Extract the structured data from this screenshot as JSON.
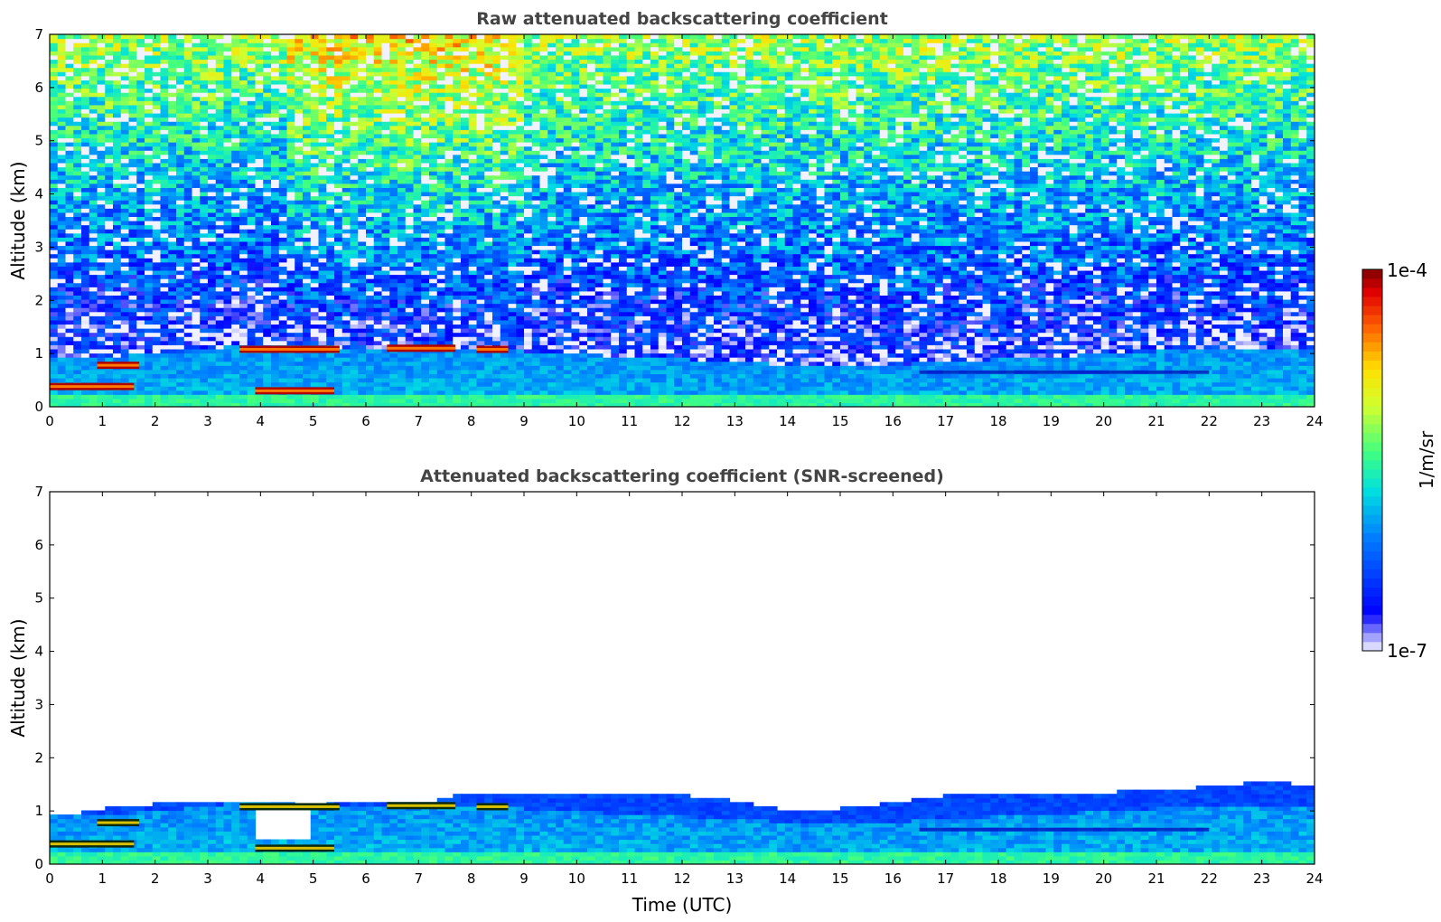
{
  "figure": {
    "colorbar": {
      "max_label": "1e-4",
      "min_label": "1e-7",
      "unit_label": "1/m/sr",
      "colormap": "jet",
      "scale": "log"
    }
  },
  "chart_data": [
    {
      "type": "heatmap",
      "title": "Raw attenuated backscattering coefficient",
      "xlabel": "",
      "ylabel": "Altitude (km)",
      "xlim": [
        0,
        24
      ],
      "ylim": [
        0,
        7
      ],
      "x_ticks": [
        "0",
        "1",
        "2",
        "3",
        "4",
        "5",
        "6",
        "7",
        "8",
        "9",
        "10",
        "11",
        "12",
        "13",
        "14",
        "15",
        "16",
        "17",
        "18",
        "19",
        "20",
        "21",
        "22",
        "23",
        "24"
      ],
      "y_ticks": [
        "0",
        "1",
        "2",
        "3",
        "4",
        "5",
        "6",
        "7"
      ],
      "features": {
        "near_surface_layer_km": [
          0.0,
          0.3
        ],
        "boundary_layer_top_km": [
          [
            0,
            0.9
          ],
          [
            2,
            1.0
          ],
          [
            4,
            1.2
          ],
          [
            6,
            1.1
          ],
          [
            8,
            1.1
          ],
          [
            10,
            1.0
          ],
          [
            12,
            0.9
          ],
          [
            14,
            0.8
          ],
          [
            16,
            0.8
          ],
          [
            18,
            0.9
          ],
          [
            20,
            1.0
          ],
          [
            22,
            1.1
          ],
          [
            24,
            1.1
          ]
        ],
        "cloud_segments": [
          {
            "t_start": 0.0,
            "t_end": 1.6,
            "alt_km": 0.38
          },
          {
            "t_start": 0.9,
            "t_end": 1.7,
            "alt_km": 0.78
          },
          {
            "t_start": 3.6,
            "t_end": 5.5,
            "alt_km": 1.08
          },
          {
            "t_start": 3.9,
            "t_end": 5.4,
            "alt_km": 0.3
          },
          {
            "t_start": 6.4,
            "t_end": 7.7,
            "alt_km": 1.1
          },
          {
            "t_start": 8.1,
            "t_end": 8.7,
            "alt_km": 1.08
          }
        ],
        "elevated_aerosol_layer": {
          "t_start": 16.5,
          "t_end": 22.0,
          "alt_km": 0.65
        }
      }
    },
    {
      "type": "heatmap",
      "title": "Attenuated backscattering coefficient (SNR-screened)",
      "xlabel": "Time (UTC)",
      "ylabel": "Altitude (km)",
      "xlim": [
        0,
        24
      ],
      "ylim": [
        0,
        7
      ],
      "x_ticks": [
        "0",
        "1",
        "2",
        "3",
        "4",
        "5",
        "6",
        "7",
        "8",
        "9",
        "10",
        "11",
        "12",
        "13",
        "14",
        "15",
        "16",
        "17",
        "18",
        "19",
        "20",
        "21",
        "22",
        "23",
        "24"
      ],
      "y_ticks": [
        "0",
        "1",
        "2",
        "3",
        "4",
        "5",
        "6",
        "7"
      ],
      "features": {
        "screened_top_km": [
          [
            0,
            0.9
          ],
          [
            1.5,
            1.1
          ],
          [
            3,
            1.2
          ],
          [
            4,
            1.2
          ],
          [
            5,
            1.1
          ],
          [
            6,
            1.2
          ],
          [
            7,
            1.15
          ],
          [
            8,
            1.35
          ],
          [
            9,
            1.35
          ],
          [
            10,
            1.3
          ],
          [
            11,
            1.3
          ],
          [
            12,
            1.3
          ],
          [
            13,
            1.2
          ],
          [
            14,
            1.0
          ],
          [
            15,
            1.05
          ],
          [
            16,
            1.15
          ],
          [
            17,
            1.3
          ],
          [
            18,
            1.35
          ],
          [
            19,
            1.35
          ],
          [
            20,
            1.35
          ],
          [
            21,
            1.4
          ],
          [
            22,
            1.45
          ],
          [
            23,
            1.55
          ],
          [
            23.9,
            1.5
          ]
        ],
        "screened_gap": {
          "t_start": 3.85,
          "t_end": 5.0,
          "alt_low_km": 0.45,
          "alt_high_km": 1.1
        }
      }
    }
  ]
}
